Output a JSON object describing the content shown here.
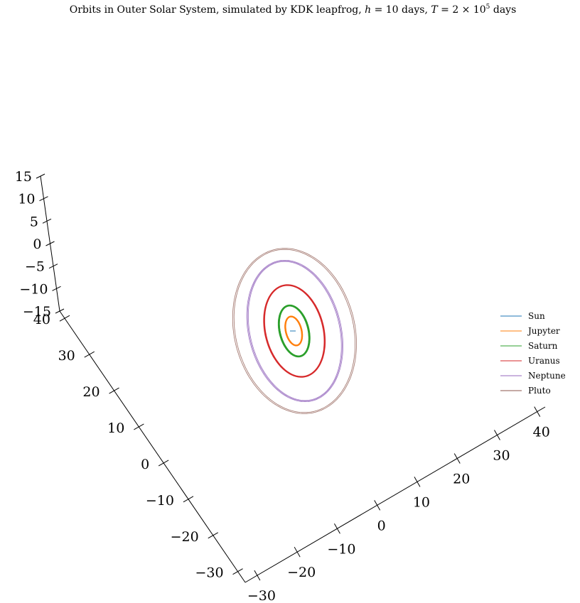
{
  "chart_data": {
    "type": "line",
    "title": {
      "prefix": "Orbits in Outer Solar System, simulated by KDK leapfrog, ",
      "h_symbol": "h",
      "h_rest": " = 10 days, ",
      "T_symbol": "T",
      "T_rest": " = 2 × 10",
      "T_exp": "5",
      "T_unit": " days"
    },
    "xlabel": "",
    "ylabel": "",
    "zlabel": "",
    "xlim": [
      -30,
      45
    ],
    "ylim": [
      -30,
      45
    ],
    "zlim": [
      -15,
      15
    ],
    "x_ticks": [
      "−30",
      "−20",
      "−10",
      "0",
      "10",
      "20",
      "30",
      "40"
    ],
    "y_ticks": [
      "−30",
      "−20",
      "−10",
      "0",
      "10",
      "20",
      "30",
      "40"
    ],
    "z_ticks": [
      "−15",
      "−10",
      "−5",
      "0",
      "5",
      "10",
      "15"
    ],
    "legend_position": "right",
    "series": [
      {
        "name": "Sun",
        "color": "#1f77b4",
        "a": 0,
        "b": 0,
        "revolutions": 1,
        "drift": 0
      },
      {
        "name": "Jupyter",
        "color": "#ff7f0e",
        "a": 5.2,
        "b": 8.7,
        "revolutions": 46,
        "drift": 0.3
      },
      {
        "name": "Saturn",
        "color": "#2ca02c",
        "a": 9.5,
        "b": 15.3,
        "revolutions": 19,
        "drift": 0.45
      },
      {
        "name": "Uranus",
        "color": "#d62728",
        "a": 19.2,
        "b": 27.5,
        "revolutions": 7,
        "drift": 0.55
      },
      {
        "name": "Neptune",
        "color": "#9467bd",
        "a": 30.1,
        "b": 42.0,
        "revolutions": 3.3,
        "drift": 0.7
      },
      {
        "name": "Pluto",
        "color": "#8c564b",
        "a": 39.5,
        "b": 49.0,
        "revolutions": 2,
        "drift": 0.6
      }
    ]
  }
}
